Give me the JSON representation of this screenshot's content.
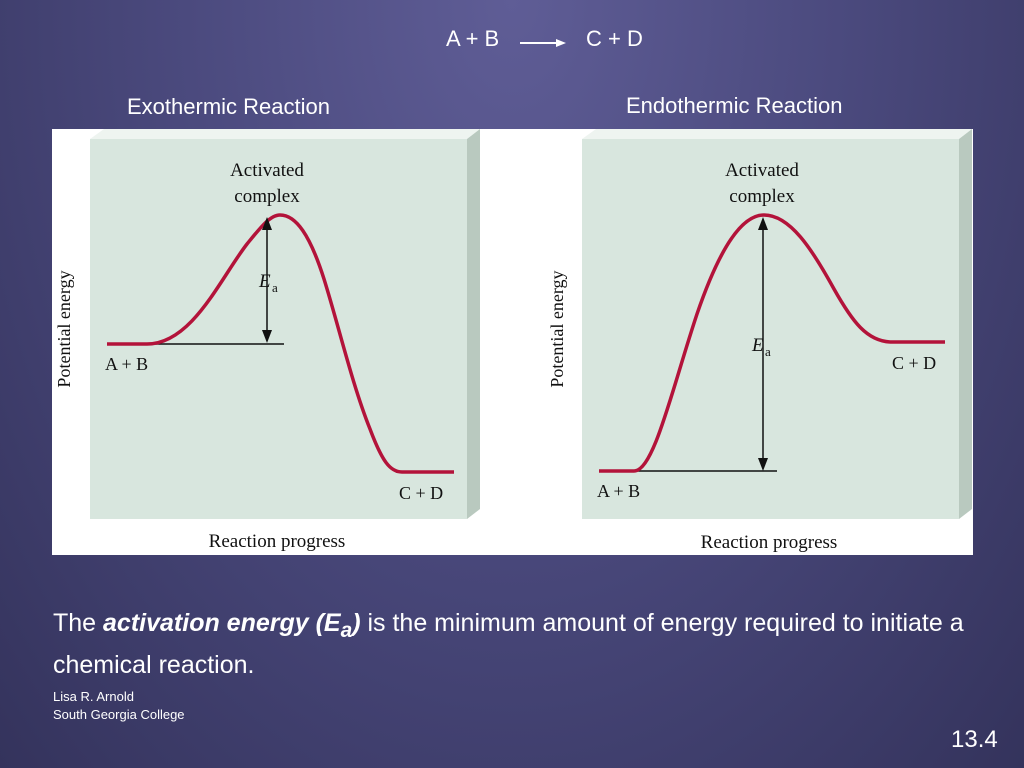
{
  "equation": {
    "left": "A + B",
    "right": "C + D"
  },
  "panels": [
    {
      "label": "Exothermic Reaction",
      "peak_label_line1": "Activated",
      "peak_label_line2": "complex",
      "ylabel": "Potential energy",
      "xlabel": "Reaction progress",
      "reactants": "A + B",
      "products": "C + D",
      "ea_symbol": "E",
      "ea_subscript": "a"
    },
    {
      "label": "Endothermic Reaction",
      "peak_label_line1": "Activated",
      "peak_label_line2": "complex",
      "ylabel": "Potential energy",
      "xlabel": "Reaction progress",
      "reactants": "A + B",
      "products": "C + D",
      "ea_symbol": "E",
      "ea_subscript": "a"
    }
  ],
  "definition": {
    "prefix": "The ",
    "term": "activation energy (E",
    "term_sub": "a",
    "term_close": ")",
    "rest": " is the minimum amount of energy required to initiate a chemical reaction."
  },
  "credit": {
    "author": "Lisa R. Arnold",
    "institution": "South Georgia College"
  },
  "slide_number": "13.4",
  "colors": {
    "curve": "#b3133a",
    "panel": "#d8e6de",
    "slide_bg": "#4b4a7e"
  }
}
